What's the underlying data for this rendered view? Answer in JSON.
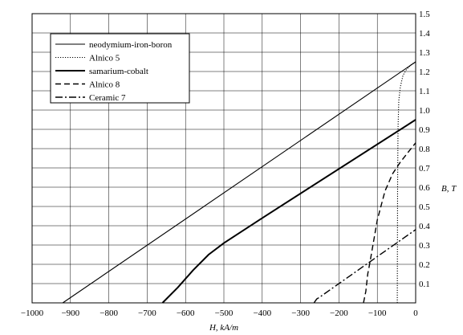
{
  "chart_data": {
    "type": "line",
    "title": "",
    "xlabel": "H, kA/m",
    "ylabel": "B, T",
    "xlim": [
      -1000,
      0
    ],
    "ylim": [
      0,
      1.5
    ],
    "grid": true,
    "legend_position": "top-left",
    "x_ticks": [
      -1000,
      -900,
      -800,
      -700,
      -600,
      -500,
      -400,
      -300,
      -200,
      -100,
      0
    ],
    "x_tick_labels": [
      "−1000",
      "−900",
      "−800",
      "−700",
      "−600",
      "−500",
      "−400",
      "−300",
      "−200",
      "−100",
      "0"
    ],
    "y_ticks": [
      0.1,
      0.2,
      0.3,
      0.4,
      0.5,
      0.6,
      0.7,
      0.8,
      0.9,
      1.0,
      1.1,
      1.2,
      1.3,
      1.4,
      1.5
    ],
    "y_tick_labels": [
      "0.1",
      "0.2",
      "0.3",
      "0.4",
      "0.5",
      "0.6",
      "0.7",
      "0.8",
      "0.9",
      "1.0",
      "1.1",
      "1.2",
      "1.3",
      "1.4",
      "1.5"
    ],
    "series": [
      {
        "name": "neodymium-iron-boron",
        "style": "solid-thin",
        "points": [
          [
            -920,
            0
          ],
          [
            0,
            1.25
          ]
        ]
      },
      {
        "name": "Alnico 5",
        "style": "dotted",
        "points": [
          [
            -48,
            0
          ],
          [
            -47,
            0.6
          ],
          [
            -46,
            0.9
          ],
          [
            -44,
            1.05
          ],
          [
            -40,
            1.12
          ],
          [
            -33,
            1.18
          ],
          [
            -24,
            1.21
          ],
          [
            -12,
            1.235
          ],
          [
            0,
            1.25
          ]
        ]
      },
      {
        "name": "samarium-cobalt",
        "style": "solid-thick",
        "points": [
          [
            -660,
            0
          ],
          [
            -620,
            0.08
          ],
          [
            -580,
            0.17
          ],
          [
            -540,
            0.25
          ],
          [
            -500,
            0.31
          ],
          [
            -400,
            0.44
          ],
          [
            0,
            0.95
          ]
        ]
      },
      {
        "name": "Alnico 8",
        "style": "dashed",
        "points": [
          [
            -136,
            0
          ],
          [
            -130,
            0.06
          ],
          [
            -125,
            0.15
          ],
          [
            -120,
            0.2
          ],
          [
            -100,
            0.43
          ],
          [
            -80,
            0.58
          ],
          [
            -60,
            0.67
          ],
          [
            -40,
            0.73
          ],
          [
            -20,
            0.78
          ],
          [
            0,
            0.83
          ]
        ]
      },
      {
        "name": "Ceramic 7",
        "style": "dashdot",
        "points": [
          [
            -265,
            0
          ],
          [
            -258,
            0.02
          ],
          [
            -250,
            0.03
          ],
          [
            0,
            0.38
          ]
        ]
      }
    ]
  }
}
